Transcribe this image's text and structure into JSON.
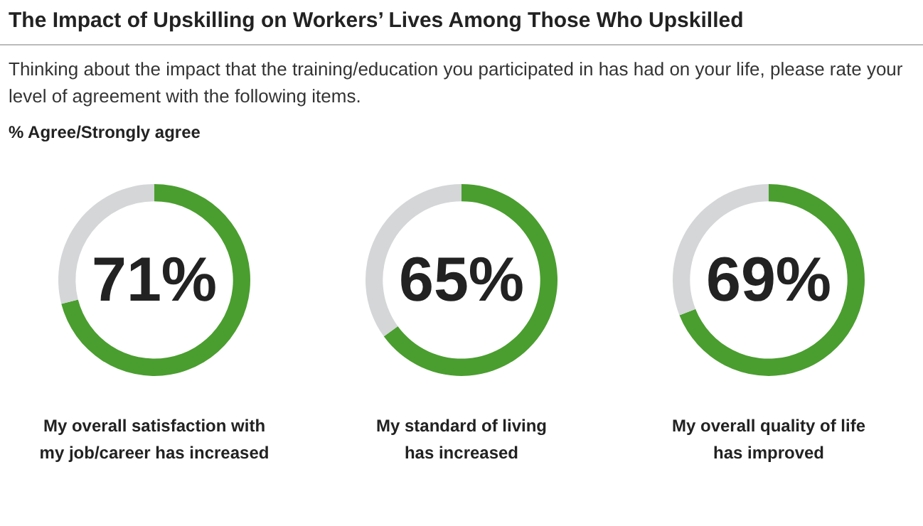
{
  "chart_data": [
    {
      "type": "donut",
      "title": "The Impact of Upskilling on Workers’ Lives Among Those Who Upskilled",
      "subtitle": "Thinking about the impact that the training/education you participated in has had on your life, please rate your level of agreement with the following items.",
      "annotations": [
        "% Agree/Strongly agree"
      ],
      "categories": [
        null,
        null
      ],
      "values": [
        71,
        29
      ],
      "colors": [
        "#4a9e2f",
        "#d4d6d8"
      ],
      "value_labels": [
        "71%",
        null
      ],
      "xlabel": "My overall satisfaction with\nmy job/career has increased"
    },
    {
      "type": "donut",
      "categories": [
        null,
        null
      ],
      "values": [
        65,
        35
      ],
      "colors": [
        "#4a9e2f",
        "#d4d6d8"
      ],
      "value_labels": [
        "65%",
        null
      ],
      "xlabel": "My standard of living\nhas increased"
    },
    {
      "type": "donut",
      "categories": [
        null,
        null
      ],
      "values": [
        69,
        31
      ],
      "colors": [
        "#4a9e2f",
        "#d4d6d8"
      ],
      "value_labels": [
        "69%",
        null
      ],
      "xlabel": "My overall quality of life\nhas improved"
    }
  ]
}
